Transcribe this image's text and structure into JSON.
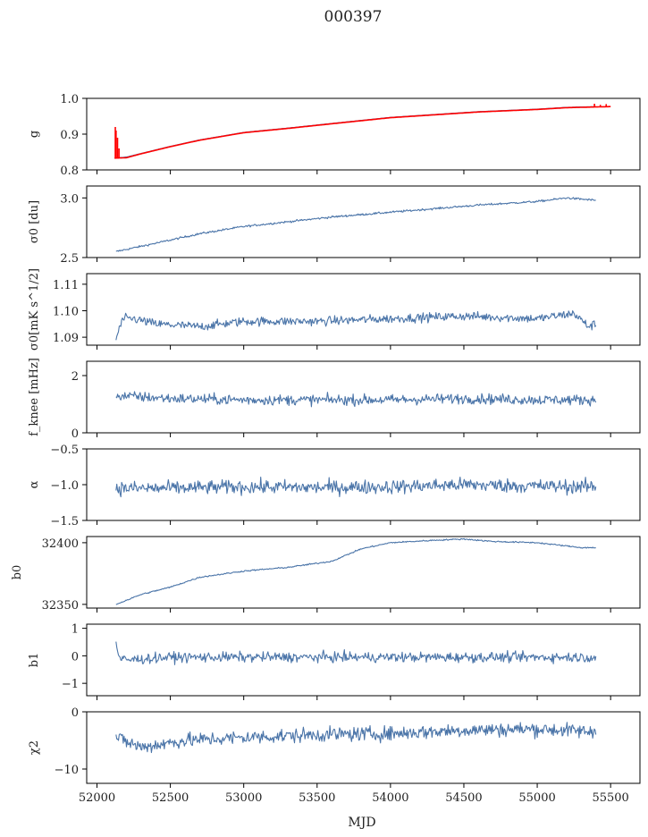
{
  "figure_title": "000397",
  "xlabel": "MJD",
  "x_ticks": [
    52000,
    52500,
    53000,
    53500,
    54000,
    54500,
    55000,
    55500
  ],
  "x_tick_labels": [
    "52000",
    "52500",
    "53000",
    "53500",
    "54000",
    "54500",
    "55000",
    "55500"
  ],
  "colors": {
    "line": "#4a74a8",
    "overlay": "#ff0000",
    "axis": "#000000",
    "background": "#ffffff"
  },
  "chart_data": [
    {
      "type": "line",
      "ylabel": "g",
      "ylim": [
        0.8,
        1.0
      ],
      "yticks": [
        0.8,
        0.9,
        1.0
      ],
      "ytick_labels": [
        "0.8",
        "0.9",
        "1.0"
      ],
      "grid": false,
      "series": [
        {
          "color": "#4a74a8",
          "kind": "smooth",
          "x": [
            52120,
            52200,
            52300,
            52500,
            52700,
            53000,
            53300,
            53600,
            54000,
            54300,
            54600,
            55000,
            55200,
            55400
          ],
          "y": [
            0.833,
            0.836,
            0.846,
            0.866,
            0.884,
            0.905,
            0.917,
            0.93,
            0.947,
            0.955,
            0.963,
            0.97,
            0.975,
            0.977
          ]
        },
        {
          "color": "#ff0000",
          "kind": "smooth",
          "x": [
            52120,
            52200,
            52300,
            52500,
            52700,
            53000,
            53300,
            53600,
            54000,
            54300,
            54600,
            55000,
            55200,
            55500
          ],
          "y": [
            0.833,
            0.834,
            0.845,
            0.865,
            0.883,
            0.904,
            0.916,
            0.929,
            0.946,
            0.954,
            0.962,
            0.969,
            0.974,
            0.977
          ]
        },
        {
          "color": "#ff0000",
          "kind": "spikes",
          "x": [
            52125,
            52130,
            52140,
            52150,
            55390,
            55430,
            55470
          ],
          "y": [
            0.92,
            0.91,
            0.89,
            0.86,
            0.985,
            0.982,
            0.984
          ]
        }
      ]
    },
    {
      "type": "line",
      "ylabel": "σ0 [du]",
      "ylim": [
        2.5,
        3.1
      ],
      "yticks": [
        2.5,
        3.0
      ],
      "ytick_labels": [
        "2.5",
        "3.0"
      ],
      "grid": false,
      "series": [
        {
          "color": "#4a74a8",
          "kind": "smooth",
          "noise": 0.006,
          "x": [
            52130,
            52400,
            52700,
            53000,
            53300,
            53600,
            53900,
            54200,
            54600,
            55000,
            55200,
            55300,
            55400
          ],
          "y": [
            2.55,
            2.62,
            2.7,
            2.76,
            2.8,
            2.84,
            2.87,
            2.9,
            2.94,
            2.97,
            3.0,
            2.99,
            2.98
          ]
        }
      ]
    },
    {
      "type": "line",
      "ylabel": "σ0[mK s^1/2]",
      "ylim": [
        1.087,
        1.114
      ],
      "yticks": [
        1.09,
        1.1,
        1.11
      ],
      "ytick_labels": [
        "1.09",
        "1.10",
        "1.11"
      ],
      "grid": false,
      "series": [
        {
          "color": "#4a74a8",
          "kind": "noisy",
          "noise": 0.0012,
          "x": [
            52130,
            52150,
            52180,
            52250,
            52400,
            52700,
            53000,
            53500,
            54000,
            54500,
            55000,
            55250,
            55350,
            55400
          ],
          "y": [
            1.089,
            1.093,
            1.097,
            1.097,
            1.095,
            1.094,
            1.096,
            1.096,
            1.097,
            1.098,
            1.097,
            1.099,
            1.094,
            1.095
          ]
        }
      ]
    },
    {
      "type": "line",
      "ylabel": "f_knee [mHz]",
      "ylim": [
        0,
        2.5
      ],
      "yticks": [
        0,
        2
      ],
      "ytick_labels": [
        "0",
        "2"
      ],
      "grid": false,
      "series": [
        {
          "color": "#4a74a8",
          "kind": "noisy",
          "noise": 0.13,
          "x": [
            52130,
            52500,
            53000,
            53500,
            54000,
            54500,
            55000,
            55400
          ],
          "y": [
            1.3,
            1.2,
            1.15,
            1.15,
            1.15,
            1.2,
            1.15,
            1.15
          ]
        }
      ]
    },
    {
      "type": "line",
      "ylabel": "α",
      "ylim": [
        -1.5,
        -0.5
      ],
      "yticks": [
        -1.5,
        -1.0,
        -0.5
      ],
      "ytick_labels": [
        "−1.5",
        "−1.0",
        "−0.5"
      ],
      "grid": false,
      "series": [
        {
          "color": "#4a74a8",
          "kind": "noisy",
          "noise": 0.07,
          "x": [
            52130,
            52500,
            53000,
            53500,
            54000,
            54500,
            55000,
            55400
          ],
          "y": [
            -1.05,
            -1.05,
            -1.03,
            -1.04,
            -1.03,
            -1.0,
            -1.02,
            -1.03
          ]
        }
      ]
    },
    {
      "type": "line",
      "ylabel": "b0",
      "ylim": [
        32347,
        32405
      ],
      "yticks": [
        32350,
        32400
      ],
      "ytick_labels": [
        "32350",
        "32400"
      ],
      "grid": false,
      "series": [
        {
          "color": "#4a74a8",
          "kind": "smooth",
          "noise": 0.4,
          "x": [
            52130,
            52300,
            52500,
            52700,
            53000,
            53300,
            53600,
            53800,
            54000,
            54300,
            54500,
            54700,
            55000,
            55300,
            55400
          ],
          "y": [
            32350,
            32358,
            32364,
            32372,
            32377,
            32380,
            32385,
            32395,
            32400,
            32402,
            32403,
            32401,
            32400,
            32396,
            32396
          ]
        }
      ]
    },
    {
      "type": "line",
      "ylabel": "b1",
      "ylim": [
        -1.45,
        1.15
      ],
      "yticks": [
        -1,
        0,
        1
      ],
      "ytick_labels": [
        "−1",
        "0",
        "1"
      ],
      "grid": false,
      "series": [
        {
          "color": "#4a74a8",
          "kind": "noisy",
          "noise": 0.13,
          "x": [
            52130,
            52150,
            52200,
            52500,
            53000,
            53500,
            54000,
            54500,
            55000,
            55400
          ],
          "y": [
            0.5,
            -0.1,
            -0.15,
            -0.05,
            -0.05,
            -0.05,
            -0.05,
            -0.05,
            -0.05,
            -0.05
          ]
        }
      ]
    },
    {
      "type": "line",
      "ylabel": "χ2",
      "ylim": [
        -12.5,
        0
      ],
      "yticks": [
        -10,
        0
      ],
      "ytick_labels": [
        "−10",
        "0"
      ],
      "grid": false,
      "series": [
        {
          "color": "#4a74a8",
          "kind": "noisy",
          "noise": 0.9,
          "x": [
            52130,
            52300,
            52600,
            53000,
            53500,
            54000,
            54500,
            55000,
            55400
          ],
          "y": [
            -4.5,
            -6.2,
            -5.0,
            -4.5,
            -4.0,
            -3.8,
            -3.2,
            -3.0,
            -3.5
          ]
        }
      ]
    }
  ]
}
